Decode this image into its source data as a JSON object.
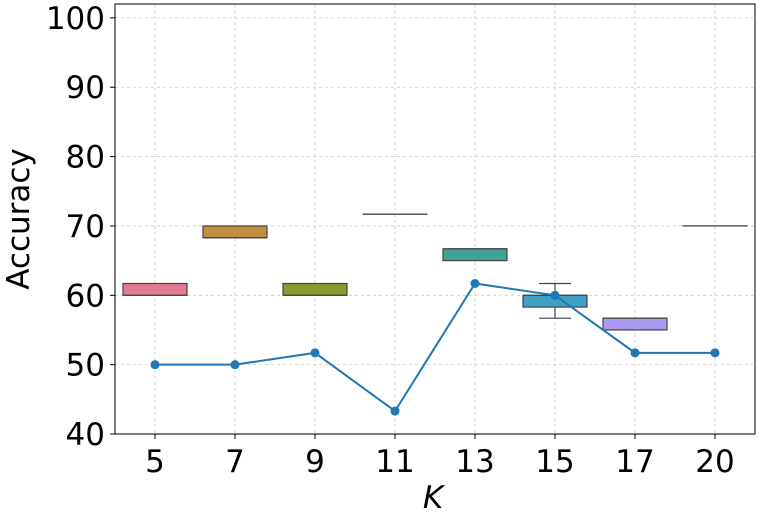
{
  "chart_data": {
    "type": "box",
    "xlabel": "K",
    "ylabel": "Accuracy",
    "ylim": [
      40,
      102
    ],
    "yticks": [
      40,
      50,
      60,
      70,
      80,
      90,
      100
    ],
    "categories": [
      "5",
      "7",
      "9",
      "11",
      "13",
      "15",
      "17",
      "20"
    ],
    "grid": true,
    "boxes": [
      {
        "category": "5",
        "min": 60.0,
        "q1": 60.0,
        "median": 60.0,
        "q3": 61.7,
        "max": 61.7,
        "color": "#e07b91"
      },
      {
        "category": "7",
        "min": 68.3,
        "q1": 68.3,
        "median": 68.3,
        "q3": 70.0,
        "max": 70.0,
        "color": "#c18f3e"
      },
      {
        "category": "9",
        "min": 60.0,
        "q1": 60.0,
        "median": 60.0,
        "q3": 61.7,
        "max": 61.7,
        "color": "#8a9a2f"
      },
      {
        "category": "11",
        "min": 71.7,
        "q1": 71.7,
        "median": 71.7,
        "q3": 71.7,
        "max": 71.7,
        "color": "#5fa85f"
      },
      {
        "category": "13",
        "min": 65.0,
        "q1": 65.0,
        "median": 66.7,
        "q3": 66.7,
        "max": 66.7,
        "color": "#40a295"
      },
      {
        "category": "15",
        "min": 56.7,
        "q1": 58.3,
        "median": 60.0,
        "q3": 60.0,
        "max": 61.7,
        "color": "#3f9fc4"
      },
      {
        "category": "17",
        "min": 55.0,
        "q1": 55.0,
        "median": 56.7,
        "q3": 56.7,
        "max": 56.7,
        "color": "#a99af0"
      },
      {
        "category": "20",
        "min": 70.0,
        "q1": 70.0,
        "median": 70.0,
        "q3": 70.0,
        "max": 70.0,
        "color": "#e27cc4"
      }
    ],
    "series": [
      {
        "type": "line",
        "color": "#1f77b4",
        "values": [
          50.0,
          50.0,
          51.7,
          43.3,
          61.7,
          60.0,
          51.7,
          51.7
        ]
      }
    ]
  }
}
